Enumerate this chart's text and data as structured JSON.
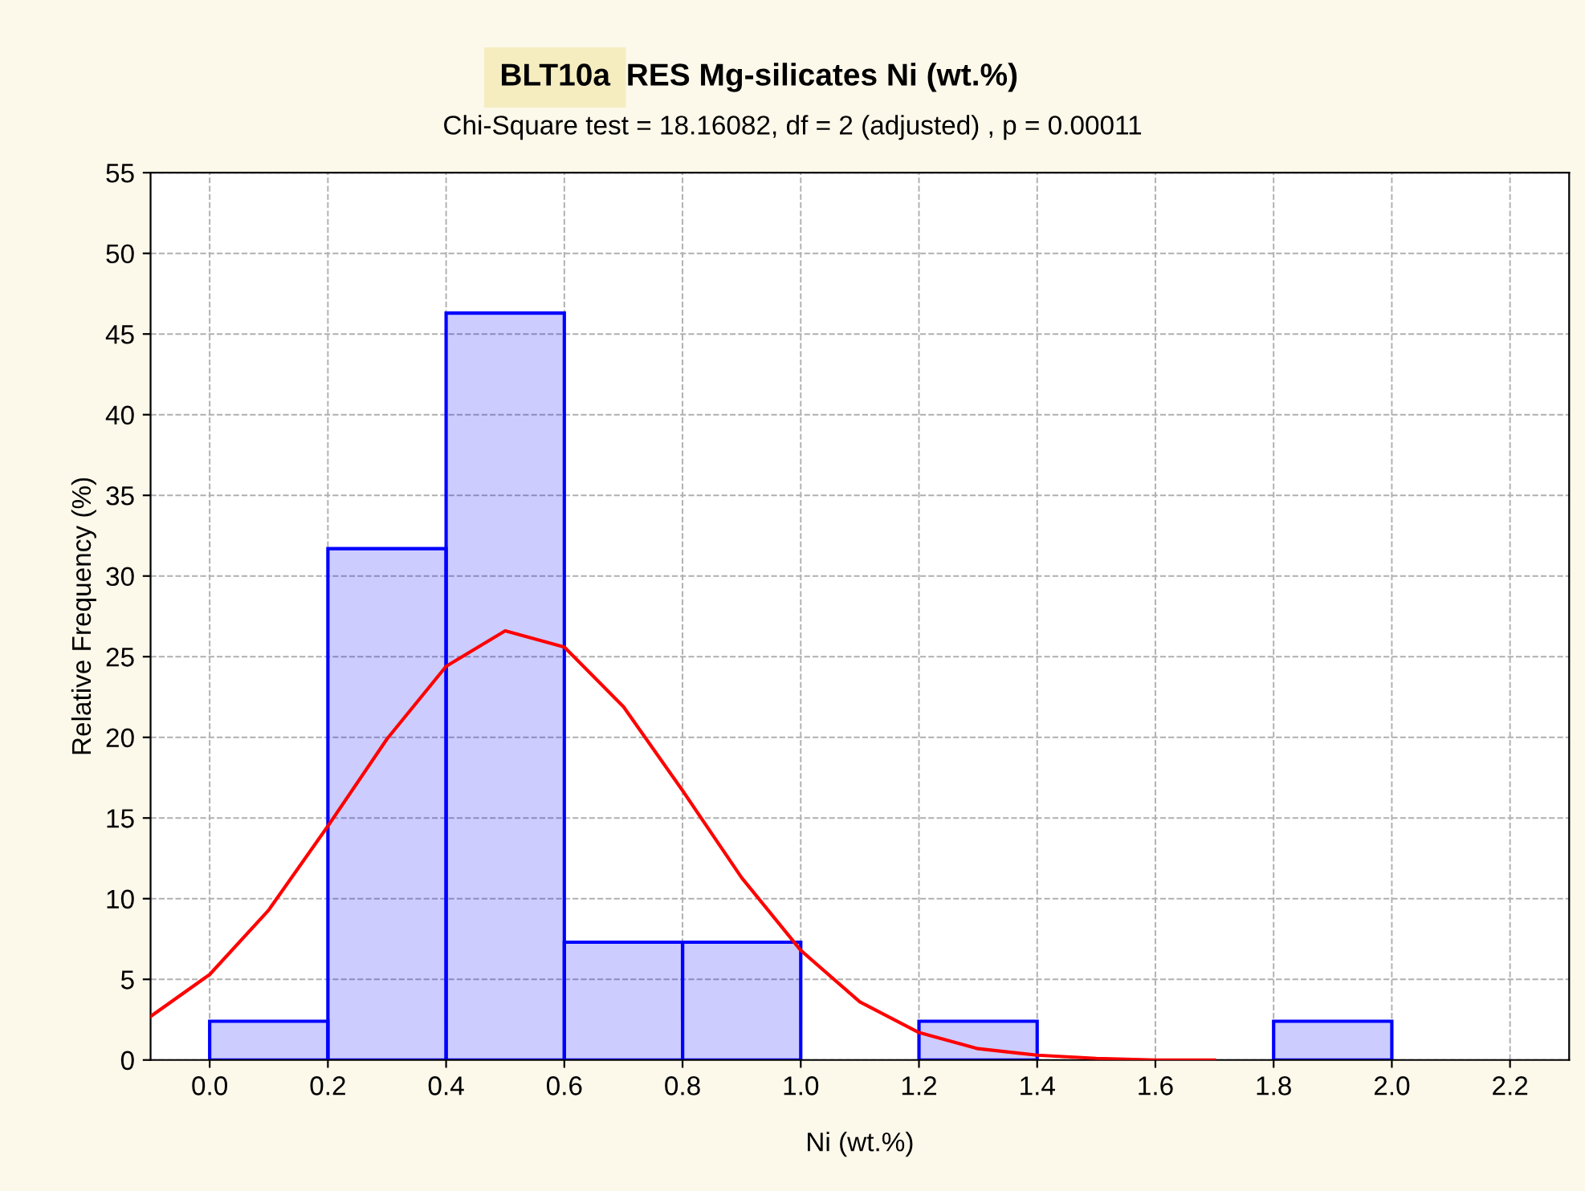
{
  "chart_data": [
    {
      "type": "histogram",
      "title": "RES Mg-silicates Ni (wt.%)",
      "subtitle": "Chi-Square test = 18.16082, df = 2 (adjusted) , p = 0.00011",
      "annotations": [
        "BLT10a"
      ],
      "xlabel": "Ni (wt.%)",
      "ylabel": "Relative Frequency (%)",
      "bins": [
        0.0,
        0.2,
        0.4,
        0.6,
        0.8,
        1.0,
        1.2,
        1.4,
        1.6,
        1.8,
        2.0
      ],
      "values": [
        2.4,
        31.7,
        46.3,
        7.3,
        7.3,
        null,
        2.4,
        null,
        null,
        2.4
      ],
      "color": "#0000ff",
      "xlim": [
        -0.1,
        2.3
      ],
      "ylim": [
        0,
        55
      ],
      "xticks": [
        {
          "value": 0.0,
          "label": "0.0"
        },
        {
          "value": 0.2,
          "label": "0.2"
        },
        {
          "value": 0.4,
          "label": "0.4"
        },
        {
          "value": 0.6,
          "label": "0.6"
        },
        {
          "value": 0.8,
          "label": "0.8"
        },
        {
          "value": 1.0,
          "label": "1.0"
        },
        {
          "value": 1.2,
          "label": "1.2"
        },
        {
          "value": 1.4,
          "label": "1.4"
        },
        {
          "value": 1.6,
          "label": "1.6"
        },
        {
          "value": 1.8,
          "label": "1.8"
        },
        {
          "value": 2.0,
          "label": "2.0"
        },
        {
          "value": 2.2,
          "label": "2.2"
        }
      ],
      "yticks": [
        0,
        5,
        10,
        15,
        20,
        25,
        30,
        35,
        40,
        45,
        50,
        55
      ],
      "grid": true,
      "series": [
        {
          "type": "line",
          "color": "#ff0000",
          "x": [
            -0.1,
            0.0,
            0.1,
            0.2,
            0.3,
            0.4,
            0.5,
            0.6,
            0.7,
            0.8,
            0.9,
            1.0,
            1.1,
            1.2,
            1.3,
            1.4,
            1.5,
            1.6,
            1.7
          ],
          "values": [
            2.7,
            5.3,
            9.3,
            14.5,
            19.9,
            24.4,
            26.6,
            25.6,
            21.9,
            16.7,
            11.3,
            6.8,
            3.6,
            1.7,
            0.7,
            0.3,
            0.1,
            0.0,
            0.0
          ]
        }
      ]
    }
  ]
}
